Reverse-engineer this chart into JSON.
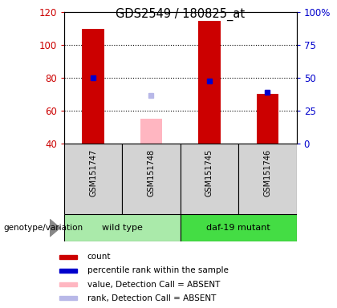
{
  "title": "GDS2549 / 180825_at",
  "samples": [
    "GSM151747",
    "GSM151748",
    "GSM151745",
    "GSM151746"
  ],
  "groups": [
    {
      "label": "wild type",
      "samples": [
        "GSM151747",
        "GSM151748"
      ],
      "color": "#aaeaaa"
    },
    {
      "label": "daf-19 mutant",
      "samples": [
        "GSM151745",
        "GSM151746"
      ],
      "color": "#44dd44"
    }
  ],
  "count_values": [
    110,
    null,
    115,
    70
  ],
  "count_color": "#cc0000",
  "percentile_values": [
    80,
    null,
    78,
    71
  ],
  "percentile_color": "#0000cc",
  "absent_value_values": [
    null,
    55,
    null,
    null
  ],
  "absent_value_color": "#ffb6c1",
  "absent_rank_values": [
    null,
    69,
    null,
    null
  ],
  "absent_rank_color": "#b8b8e8",
  "ylim_left": [
    40,
    120
  ],
  "ylim_right": [
    0,
    100
  ],
  "yticks_left": [
    40,
    60,
    80,
    100,
    120
  ],
  "yticks_right": [
    0,
    25,
    50,
    75,
    100
  ],
  "ytick_labels_right": [
    "0",
    "25",
    "50",
    "75",
    "100%"
  ],
  "bar_width": 0.38,
  "legend_items": [
    {
      "label": "count",
      "color": "#cc0000"
    },
    {
      "label": "percentile rank within the sample",
      "color": "#0000cc"
    },
    {
      "label": "value, Detection Call = ABSENT",
      "color": "#ffb6c1"
    },
    {
      "label": "rank, Detection Call = ABSENT",
      "color": "#b8b8e8"
    }
  ],
  "label_color_left": "#cc0000",
  "label_color_right": "#0000cc",
  "grid_yticks": [
    60,
    80,
    100
  ]
}
